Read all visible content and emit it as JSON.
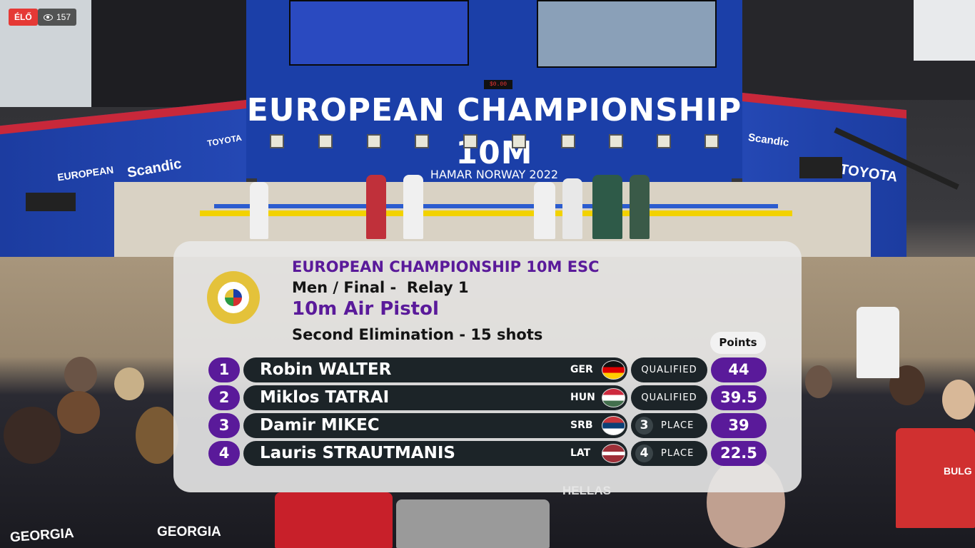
{
  "stream": {
    "live_label": "ÉLŐ",
    "viewer_count": "157"
  },
  "venue": {
    "banner": "EUROPEAN CHAMPIONSHIP 10M",
    "range_text": "HAMAR NORWAY 2022",
    "scoreboard_mini": "$0.00",
    "sponsors": [
      "Scandic",
      "TOYOTA",
      "Scandic",
      "TOYOTA",
      "EUROPEAN"
    ],
    "jackets": [
      "GEORGIA",
      "GEORGIA",
      "BULG",
      "HELLAS"
    ]
  },
  "result_card": {
    "title": "EUROPEAN CHAMPIONSHIP 10M ESC",
    "subtitle": "Men / Final -  Relay 1",
    "discipline": "10m Air Pistol",
    "stage": "Second Elimination - 15 shots",
    "points_header": "Points",
    "colors": {
      "accent": "#5a1a9a",
      "pill": "#1c2428"
    },
    "rows": [
      {
        "rank": "1",
        "athlete": "Robin WALTER",
        "nat": "GER",
        "flag": "germany-flag",
        "status_pos": "",
        "status": "QUALIFIED",
        "points": "44"
      },
      {
        "rank": "2",
        "athlete": "Miklos TATRAI",
        "nat": "HUN",
        "flag": "hungary-flag",
        "status_pos": "",
        "status": "QUALIFIED",
        "points": "39.5"
      },
      {
        "rank": "3",
        "athlete": "Damir MIKEC",
        "nat": "SRB",
        "flag": "serbia-flag",
        "status_pos": "3",
        "status": "PLACE",
        "points": "39"
      },
      {
        "rank": "4",
        "athlete": "Lauris STRAUTMANIS",
        "nat": "LAT",
        "flag": "latvia-flag",
        "status_pos": "4",
        "status": "PLACE",
        "points": "22.5"
      }
    ]
  }
}
